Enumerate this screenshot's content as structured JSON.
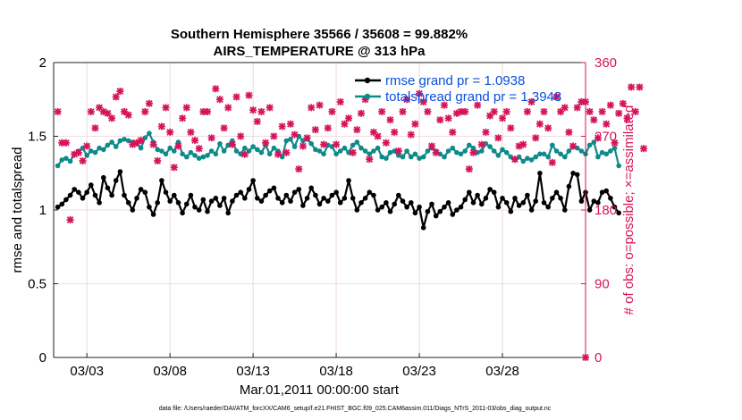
{
  "chart_data": {
    "type": "line",
    "title": "Southern Hemisphere 35566 / 35608 = 99.882%",
    "subtitle": "AIRS_TEMPERATURE @ 313 hPa",
    "xlabel": "Mar.01,2011 00:00:00 start",
    "ylabel_left": "rmse and totalspread",
    "ylabel_right": "# of obs: o=possible; ×=assimilated",
    "xlim": [
      1,
      33
    ],
    "ylim_left": [
      0,
      2
    ],
    "ylim_right": [
      0,
      360
    ],
    "x_ticks": [
      {
        "x": 3,
        "label": "03/03"
      },
      {
        "x": 8,
        "label": "03/08"
      },
      {
        "x": 13,
        "label": "03/13"
      },
      {
        "x": 18,
        "label": "03/18"
      },
      {
        "x": 23,
        "label": "03/23"
      },
      {
        "x": 28,
        "label": "03/28"
      }
    ],
    "y_ticks_left": [
      "0",
      "0.5",
      "1",
      "1.5",
      "2"
    ],
    "y_ticks_right": [
      "0",
      "90",
      "180",
      "270",
      "360"
    ],
    "grid": true,
    "legend_placement": "top-right",
    "colors": {
      "rmse": "#000000",
      "totalspread": "#0e8a8a",
      "obs": "#d6135a",
      "legend_text": "#0a4fdc"
    },
    "series": [
      {
        "name": "rmse grand pr = 1.0938",
        "axis": "left",
        "start_x": 1.25,
        "step_x": 0.25,
        "values": [
          1.02,
          1.04,
          1.07,
          1.1,
          1.14,
          1.12,
          1.08,
          1.12,
          1.17,
          1.1,
          1.05,
          1.22,
          1.15,
          1.1,
          1.2,
          1.26,
          1.1,
          1.05,
          1.0,
          1.08,
          1.14,
          1.12,
          1.02,
          0.97,
          1.05,
          1.2,
          1.12,
          1.06,
          1.1,
          1.05,
          0.98,
          1.04,
          1.1,
          1.02,
          1.0,
          1.07,
          0.99,
          1.06,
          1.08,
          1.03,
          1.08,
          0.98,
          1.06,
          1.1,
          1.12,
          1.08,
          1.14,
          1.2,
          1.08,
          1.06,
          1.1,
          1.13,
          1.15,
          1.08,
          1.05,
          1.1,
          1.06,
          1.12,
          1.14,
          1.03,
          1.08,
          1.15,
          1.1,
          1.04,
          1.08,
          1.06,
          1.1,
          1.12,
          1.05,
          1.08,
          1.2,
          1.08,
          1.0,
          1.05,
          1.08,
          1.12,
          1.1,
          1.0,
          1.02,
          1.05,
          0.99,
          1.04,
          1.1,
          1.06,
          1.02,
          1.05,
          0.98,
          1.02,
          0.88,
          0.99,
          1.04,
          0.96,
          0.99,
          1.02,
          1.05,
          0.97,
          1.0,
          1.02,
          1.07,
          1.12,
          1.05,
          1.1,
          1.04,
          1.08,
          1.14,
          1.12,
          1.02,
          1.08,
          1.05,
          0.99,
          1.08,
          1.03,
          1.05,
          1.1,
          1.0,
          1.06,
          1.25,
          1.05,
          1.02,
          1.08,
          1.12,
          1.08,
          1.0,
          1.16,
          1.25,
          1.24,
          1.06,
          1.12,
          1.0,
          1.06,
          1.05,
          1.12,
          1.13,
          1.08,
          1.02,
          0.98
        ]
      },
      {
        "name": "totalspread grand pr = 1.3948",
        "axis": "left",
        "start_x": 1.25,
        "step_x": 0.25,
        "values": [
          1.3,
          1.34,
          1.35,
          1.33,
          1.38,
          1.4,
          1.42,
          1.37,
          1.4,
          1.39,
          1.42,
          1.41,
          1.44,
          1.46,
          1.43,
          1.47,
          1.48,
          1.47,
          1.46,
          1.45,
          1.42,
          1.49,
          1.52,
          1.46,
          1.41,
          1.4,
          1.38,
          1.42,
          1.4,
          1.46,
          1.38,
          1.36,
          1.39,
          1.37,
          1.35,
          1.36,
          1.37,
          1.4,
          1.38,
          1.45,
          1.4,
          1.44,
          1.47,
          1.4,
          1.38,
          1.42,
          1.4,
          1.43,
          1.41,
          1.39,
          1.44,
          1.38,
          1.42,
          1.4,
          1.36,
          1.47,
          1.48,
          1.43,
          1.5,
          1.47,
          1.48,
          1.45,
          1.41,
          1.4,
          1.38,
          1.44,
          1.43,
          1.38,
          1.4,
          1.42,
          1.39,
          1.44,
          1.46,
          1.42,
          1.4,
          1.38,
          1.4,
          1.42,
          1.36,
          1.35,
          1.39,
          1.4,
          1.37,
          1.36,
          1.4,
          1.36,
          1.38,
          1.35,
          1.36,
          1.4,
          1.42,
          1.4,
          1.38,
          1.36,
          1.4,
          1.42,
          1.39,
          1.38,
          1.4,
          1.44,
          1.42,
          1.39,
          1.4,
          1.45,
          1.43,
          1.4,
          1.37,
          1.41,
          1.39,
          1.36,
          1.34,
          1.36,
          1.33,
          1.35,
          1.34,
          1.36,
          1.38,
          1.38,
          1.36,
          1.44,
          1.4,
          1.38,
          1.36,
          1.4,
          1.43,
          1.42,
          1.4,
          1.38,
          1.44,
          1.46,
          1.36,
          1.39,
          1.38,
          1.4,
          1.42,
          1.3
        ]
      },
      {
        "name": "obs",
        "axis": "right",
        "start_x": 1.25,
        "step_x": 0.25,
        "values": [
          300,
          262,
          262,
          168,
          248,
          250,
          240,
          258,
          300,
          280,
          305,
          300,
          298,
          292,
          318,
          325,
          300,
          296,
          260,
          262,
          265,
          300,
          310,
          260,
          240,
          282,
          305,
          275,
          232,
          258,
          292,
          305,
          275,
          265,
          255,
          300,
          300,
          268,
          328,
          315,
          280,
          305,
          260,
          318,
          270,
          248,
          320,
          302,
          288,
          300,
          262,
          305,
          270,
          248,
          282,
          250,
          285,
          272,
          230,
          258,
          268,
          305,
          278,
          308,
          260,
          280,
          300,
          260,
          312,
          285,
          292,
          250,
          278,
          298,
          315,
          242,
          275,
          270,
          300,
          262,
          290,
          275,
          252,
          300,
          315,
          272,
          285,
          322,
          312,
          300,
          258,
          250,
          290,
          308,
          292,
          275,
          298,
          300,
          300,
          230,
          250,
          308,
          260,
          275,
          295,
          300,
          268,
          292,
          300,
          280,
          242,
          258,
          260,
          300,
          312,
          268,
          285,
          300,
          280,
          238,
          318,
          300,
          305,
          275,
          258,
          305,
          312,
          312,
          300,
          290,
          268,
          300,
          285,
          308,
          262,
          298,
          310,
          292,
          330,
          300,
          330,
          255
        ]
      }
    ]
  },
  "footer": "data file: /Users/raeder/DAI/ATM_forcXX/CAM6_setup/f.e21.FHIST_BGC.f09_025.CAM6assim.011/Diags_NTrS_2011-03/obs_diag_output.nc"
}
